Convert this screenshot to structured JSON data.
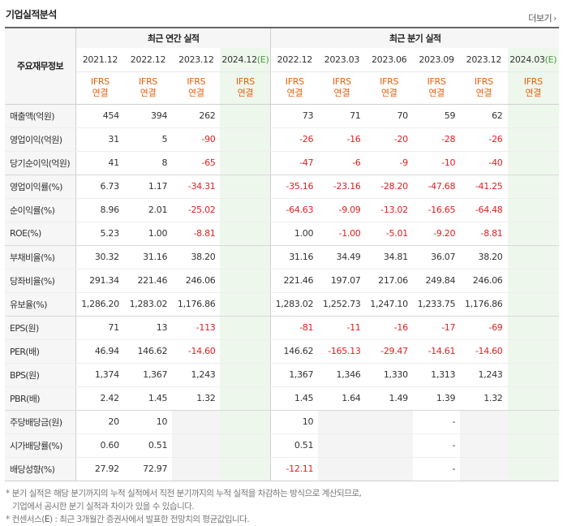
{
  "title": "기업실적분석",
  "more_label": "더보기",
  "header": {
    "label_col": "주요재무정보",
    "annual_group": "최근 연간 실적",
    "quarter_group": "최근 분기 실적",
    "annual_periods": [
      "2021.12",
      "2022.12",
      "2023.12",
      "2024.12(E)"
    ],
    "quarter_periods": [
      "2022.12",
      "2023.03",
      "2023.06",
      "2023.09",
      "2023.12",
      "2024.03(E)"
    ],
    "standard_line1": "IFRS",
    "standard_line2": "연결"
  },
  "rows": [
    {
      "label": "매출액(억원)",
      "annual": [
        "454",
        "394",
        "262",
        ""
      ],
      "quarter": [
        "73",
        "71",
        "70",
        "59",
        "62",
        ""
      ]
    },
    {
      "label": "영업이익(억원)",
      "annual": [
        "31",
        "5",
        "-90",
        ""
      ],
      "quarter": [
        "-26",
        "-16",
        "-20",
        "-28",
        "-26",
        ""
      ]
    },
    {
      "label": "당기순이익(억원)",
      "annual": [
        "41",
        "8",
        "-65",
        ""
      ],
      "quarter": [
        "-47",
        "-6",
        "-9",
        "-10",
        "-40",
        ""
      ]
    },
    {
      "label": "영업이익률(%)",
      "annual": [
        "6.73",
        "1.17",
        "-34.31",
        ""
      ],
      "quarter": [
        "-35.16",
        "-23.16",
        "-28.20",
        "-47.68",
        "-41.25",
        ""
      ]
    },
    {
      "label": "순이익률(%)",
      "annual": [
        "8.96",
        "2.01",
        "-25.02",
        ""
      ],
      "quarter": [
        "-64.63",
        "-9.09",
        "-13.02",
        "-16.65",
        "-64.48",
        ""
      ]
    },
    {
      "label": "ROE(%)",
      "annual": [
        "5.23",
        "1.00",
        "-8.81",
        ""
      ],
      "quarter": [
        "1.00",
        "-1.00",
        "-5.01",
        "-9.20",
        "-8.81",
        ""
      ]
    },
    {
      "label": "부채비율(%)",
      "annual": [
        "30.32",
        "31.16",
        "38.20",
        ""
      ],
      "quarter": [
        "31.16",
        "34.49",
        "34.81",
        "36.07",
        "38.20",
        ""
      ]
    },
    {
      "label": "당좌비율(%)",
      "annual": [
        "291.34",
        "221.46",
        "246.06",
        ""
      ],
      "quarter": [
        "221.46",
        "197.07",
        "217.06",
        "249.84",
        "246.06",
        ""
      ]
    },
    {
      "label": "유보율(%)",
      "annual": [
        "1,286.20",
        "1,283.02",
        "1,176.86",
        ""
      ],
      "quarter": [
        "1,283.02",
        "1,252.73",
        "1,247.10",
        "1,233.75",
        "1,176.86",
        ""
      ]
    },
    {
      "label": "EPS(원)",
      "annual": [
        "71",
        "13",
        "-113",
        ""
      ],
      "quarter": [
        "-81",
        "-11",
        "-16",
        "-17",
        "-69",
        ""
      ]
    },
    {
      "label": "PER(배)",
      "annual": [
        "46.94",
        "146.62",
        "-14.60",
        ""
      ],
      "quarter": [
        "146.62",
        "-165.13",
        "-29.47",
        "-14.61",
        "-14.60",
        ""
      ]
    },
    {
      "label": "BPS(원)",
      "annual": [
        "1,374",
        "1,367",
        "1,243",
        ""
      ],
      "quarter": [
        "1,367",
        "1,346",
        "1,330",
        "1,313",
        "1,243",
        ""
      ]
    },
    {
      "label": "PBR(배)",
      "annual": [
        "2.42",
        "1.45",
        "1.32",
        ""
      ],
      "quarter": [
        "1.45",
        "1.64",
        "1.49",
        "1.39",
        "1.32",
        ""
      ]
    },
    {
      "label": "주당배당금(원)",
      "annual": [
        "20",
        "10",
        "",
        ""
      ],
      "quarter": [
        "10",
        "",
        "",
        "-",
        "",
        ""
      ]
    },
    {
      "label": "시가배당률(%)",
      "annual": [
        "0.60",
        "0.51",
        "",
        ""
      ],
      "quarter": [
        "0.51",
        "",
        "",
        "-",
        "",
        ""
      ]
    },
    {
      "label": "배당성향(%)",
      "annual": [
        "27.92",
        "72.97",
        "",
        ""
      ],
      "quarter": [
        "-12.11",
        "",
        "",
        "-",
        "",
        ""
      ]
    }
  ],
  "notes": {
    "line1": "* 분기 실적은 해당 분기까지의 누적 실적에서 직전 분기까지의 누적 실적을 차감하는 방식으로 계산되므로,",
    "line2": "기업에서 공시한 분기 실적과 차이가 있을 수 있습니다.",
    "line3_prefix": "* 컨센서스(",
    "line3_e": "E",
    "line3_suffix": ") : 최근 3개월간 증권사에서 발표한 전망치의 평균값입니다."
  },
  "colors": {
    "negative": "#e02020",
    "ifrs": "#e8600f",
    "estimate_bg": "#eef7ec",
    "estimate_tag": "#4a9a3a"
  }
}
